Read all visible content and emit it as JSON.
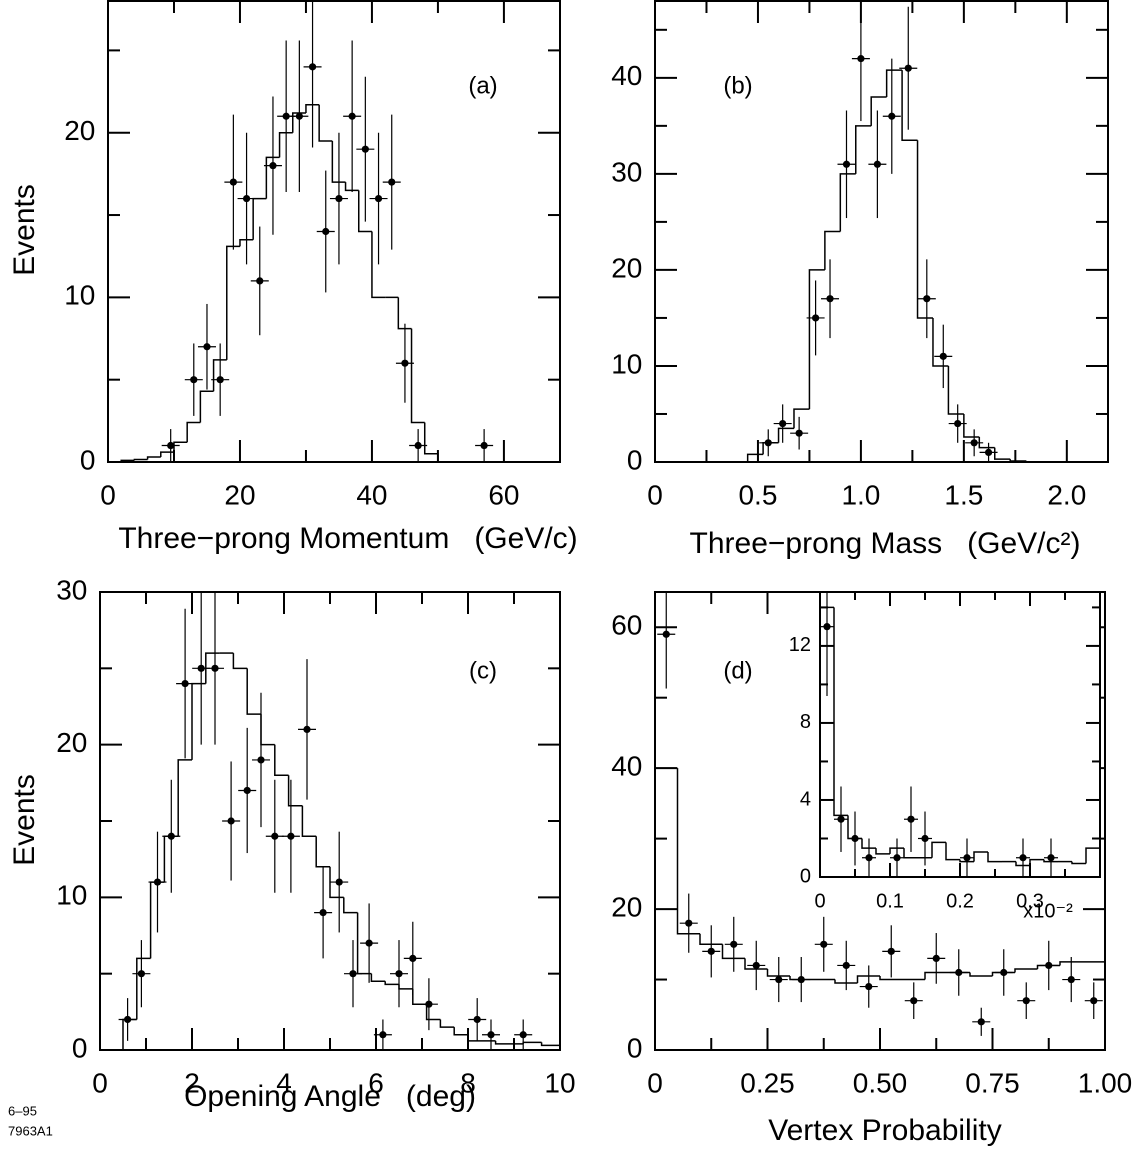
{
  "chart_data": [
    {
      "type": "histogram",
      "label": "(a)",
      "ylabel": "Events",
      "xlabel": "Three−prong Momentum   (GeV/c)",
      "color": "#000000",
      "xlim": [
        0,
        68.5
      ],
      "ylim": [
        0,
        28
      ],
      "xticks": [
        0,
        20,
        40,
        60
      ],
      "minor_xticks": [
        10,
        30,
        50
      ],
      "yticks": [
        0,
        10,
        20
      ],
      "minor_yticks": [
        5,
        15,
        25
      ],
      "bins": [
        0,
        2,
        4,
        6,
        8,
        10,
        12,
        14,
        16,
        18,
        20,
        22,
        24,
        26,
        28,
        30,
        32,
        34,
        36,
        38,
        40,
        42,
        44,
        46,
        48,
        50
      ],
      "counts": [
        0,
        0.1,
        0.15,
        0.3,
        0.6,
        1.2,
        2.4,
        4.3,
        6.2,
        13.1,
        13.5,
        16,
        18.5,
        20,
        21.2,
        21.7,
        19.5,
        17,
        16.5,
        14,
        10,
        10,
        8.1,
        2.4,
        0.5
      ],
      "points": {
        "x": [
          9.5,
          13,
          15,
          17,
          19,
          21,
          23,
          25,
          27,
          29,
          31,
          33,
          35,
          37,
          39,
          41,
          43,
          45,
          47,
          57
        ],
        "values": [
          1,
          5,
          7,
          5,
          17,
          16,
          11,
          18,
          21,
          21,
          24,
          14,
          16,
          21,
          19,
          16,
          17,
          6,
          1,
          1
        ],
        "errors": [
          1,
          2.2,
          2.6,
          2.2,
          4.1,
          4,
          3.3,
          4.2,
          4.6,
          4.6,
          4.9,
          3.7,
          4,
          4.6,
          4.4,
          4,
          4.1,
          2.4,
          1,
          1
        ]
      }
    },
    {
      "type": "histogram",
      "label": "(b)",
      "xlabel": "Three−prong Mass   (GeV/c²)",
      "color": "#000000",
      "xlim": [
        0,
        2.2
      ],
      "ylim": [
        0,
        48
      ],
      "xticks": [
        0,
        0.5,
        {
          "value": 1,
          "label": "1.0"
        },
        1.5,
        {
          "value": 2,
          "label": "2.0"
        }
      ],
      "minor_xticks": [
        0.25,
        0.75,
        1.25,
        1.75
      ],
      "yticks": [
        0,
        10,
        20,
        30,
        40
      ],
      "minor_yticks": [
        5,
        15,
        25,
        35,
        45
      ],
      "bins": [
        0.45,
        0.525,
        0.6,
        0.675,
        0.75,
        0.825,
        0.9,
        0.975,
        1.05,
        1.125,
        1.2,
        1.275,
        1.35,
        1.425,
        1.5,
        1.575,
        1.65,
        1.725,
        1.8
      ],
      "counts": [
        0.8,
        2,
        3.5,
        5.5,
        20,
        24,
        30,
        35,
        38,
        40.8,
        33.5,
        15,
        10,
        5,
        2.6,
        1.5,
        0.3,
        0.1
      ],
      "points": {
        "x": [
          0.55,
          0.62,
          0.7,
          0.78,
          0.85,
          0.93,
          1.0,
          1.08,
          1.15,
          1.23,
          1.32,
          1.4,
          1.47,
          1.55,
          1.62
        ],
        "values": [
          2,
          4,
          3,
          15,
          17,
          31,
          42,
          31,
          36,
          41,
          17,
          11,
          4,
          2,
          1
        ],
        "errors": [
          1.4,
          2,
          1.7,
          3.9,
          4.1,
          5.6,
          6.5,
          5.6,
          6,
          6.4,
          4.1,
          3.3,
          2,
          1.4,
          1
        ]
      }
    },
    {
      "type": "histogram",
      "label": "(c)",
      "ylabel": "Events",
      "xlabel": "Opening Angle   (deg)",
      "color": "#000000",
      "xlim": [
        0,
        10
      ],
      "ylim": [
        0,
        30
      ],
      "xticks": [
        0,
        2,
        4,
        6,
        8,
        10
      ],
      "minor_xticks": [
        1,
        3,
        5,
        7,
        9
      ],
      "yticks": [
        0,
        10,
        20,
        30
      ],
      "minor_yticks": [
        5,
        15,
        25
      ],
      "bins": [
        0.5,
        0.8,
        1.1,
        1.4,
        1.7,
        2.0,
        2.3,
        2.6,
        2.9,
        3.2,
        3.5,
        3.8,
        4.1,
        4.4,
        4.7,
        5.0,
        5.3,
        5.6,
        5.9,
        6.2,
        6.5,
        6.8,
        7.1,
        7.4,
        7.7,
        8.0,
        8.6,
        9.2,
        9.6,
        10.0
      ],
      "counts": [
        2,
        6,
        11,
        14,
        19,
        24,
        26,
        26,
        25,
        22,
        20,
        18,
        16,
        14,
        12,
        10,
        9,
        5,
        4.5,
        4.3,
        4,
        3,
        2,
        1.5,
        1,
        0.6,
        0.4,
        0.5,
        0.3
      ],
      "points": {
        "x": [
          0.6,
          0.9,
          1.25,
          1.55,
          1.85,
          2.2,
          2.5,
          2.85,
          3.2,
          3.5,
          3.8,
          4.15,
          4.5,
          4.85,
          5.2,
          5.5,
          5.85,
          6.15,
          6.5,
          6.8,
          7.15,
          8.2,
          8.5,
          9.2
        ],
        "values": [
          2,
          5,
          11,
          14,
          24,
          25,
          25,
          15,
          17,
          19,
          14,
          14,
          21,
          9,
          11,
          5,
          7,
          1,
          5,
          6,
          3,
          2,
          1,
          1
        ],
        "errors": [
          1.4,
          2.2,
          3.3,
          3.7,
          4.9,
          5,
          5,
          3.9,
          4.1,
          4.4,
          3.7,
          3.7,
          4.6,
          3,
          3.3,
          2.2,
          2.6,
          1,
          2.2,
          2.4,
          1.7,
          1.4,
          1,
          1
        ]
      }
    },
    {
      "type": "histogram",
      "label": "(d)",
      "xlabel": "Vertex Probability",
      "color": "#000000",
      "xlim": [
        0,
        1
      ],
      "ylim": [
        0,
        65
      ],
      "xticks": [
        0,
        0.25,
        {
          "value": 0.5,
          "label": "0.50"
        },
        0.75,
        {
          "value": 1,
          "label": "1.00"
        }
      ],
      "minor_xticks": [
        0.125,
        0.375,
        0.625,
        0.875
      ],
      "yticks": [
        0,
        20,
        40,
        60
      ],
      "minor_yticks": [
        10,
        30,
        50
      ],
      "bins": [
        0,
        0.05,
        0.1,
        0.15,
        0.2,
        0.25,
        0.3,
        0.35,
        0.4,
        0.45,
        0.5,
        0.55,
        0.6,
        0.65,
        0.7,
        0.75,
        0.8,
        0.85,
        0.9,
        0.95,
        1.0
      ],
      "counts": [
        40,
        16.5,
        15,
        13,
        11.5,
        10.5,
        10,
        10,
        9.5,
        10.5,
        10,
        10,
        11,
        11,
        10.5,
        11,
        11.5,
        12,
        12.5,
        12.5
      ],
      "points": {
        "x": [
          0.025,
          0.075,
          0.125,
          0.175,
          0.225,
          0.275,
          0.325,
          0.375,
          0.425,
          0.475,
          0.525,
          0.575,
          0.625,
          0.675,
          0.725,
          0.775,
          0.825,
          0.875,
          0.925,
          0.975
        ],
        "values": [
          59,
          18,
          14,
          15,
          12,
          10,
          10,
          15,
          12,
          9,
          14,
          7,
          13,
          11,
          4,
          11,
          7,
          12,
          10,
          7
        ],
        "errors": [
          7.7,
          4.2,
          3.7,
          3.9,
          3.5,
          3.2,
          3.2,
          3.9,
          3.5,
          3,
          3.7,
          2.6,
          3.6,
          3.3,
          2,
          3.3,
          2.6,
          3.5,
          3.2,
          2.6
        ]
      }
    },
    {
      "type": "histogram",
      "x_multiplier": "x10⁻²",
      "color": "#000000",
      "xlim": [
        0,
        0.4
      ],
      "ylim": [
        0,
        14.8
      ],
      "xticks": [
        0,
        0.1,
        0.2,
        0.3
      ],
      "minor_xticks": [
        0.05,
        0.15,
        0.25,
        0.35
      ],
      "yticks": [
        0,
        4,
        8,
        12
      ],
      "minor_yticks": [
        2,
        6,
        10,
        14
      ],
      "bins": [
        0,
        0.02,
        0.04,
        0.06,
        0.08,
        0.1,
        0.12,
        0.14,
        0.16,
        0.18,
        0.2,
        0.22,
        0.24,
        0.26,
        0.28,
        0.3,
        0.32,
        0.34,
        0.36,
        0.38,
        0.4
      ],
      "counts": [
        14,
        3.2,
        2,
        1.5,
        1.2,
        1.5,
        1,
        1,
        1.8,
        0.9,
        0.8,
        1.3,
        0.8,
        0.8,
        0.6,
        0.9,
        0.8,
        0.8,
        0.7,
        1.5
      ],
      "points": {
        "x": [
          0.01,
          0.03,
          0.05,
          0.07,
          0.11,
          0.13,
          0.15,
          0.21,
          0.29,
          0.33
        ],
        "values": [
          13,
          3,
          2,
          1,
          1,
          3,
          2,
          1,
          1,
          1
        ],
        "errors": [
          3.6,
          1.7,
          1.4,
          1,
          1,
          1.7,
          1.4,
          1,
          1,
          1
        ]
      }
    }
  ],
  "figure_code": {
    "date": "6–95",
    "id": "7963A1"
  }
}
